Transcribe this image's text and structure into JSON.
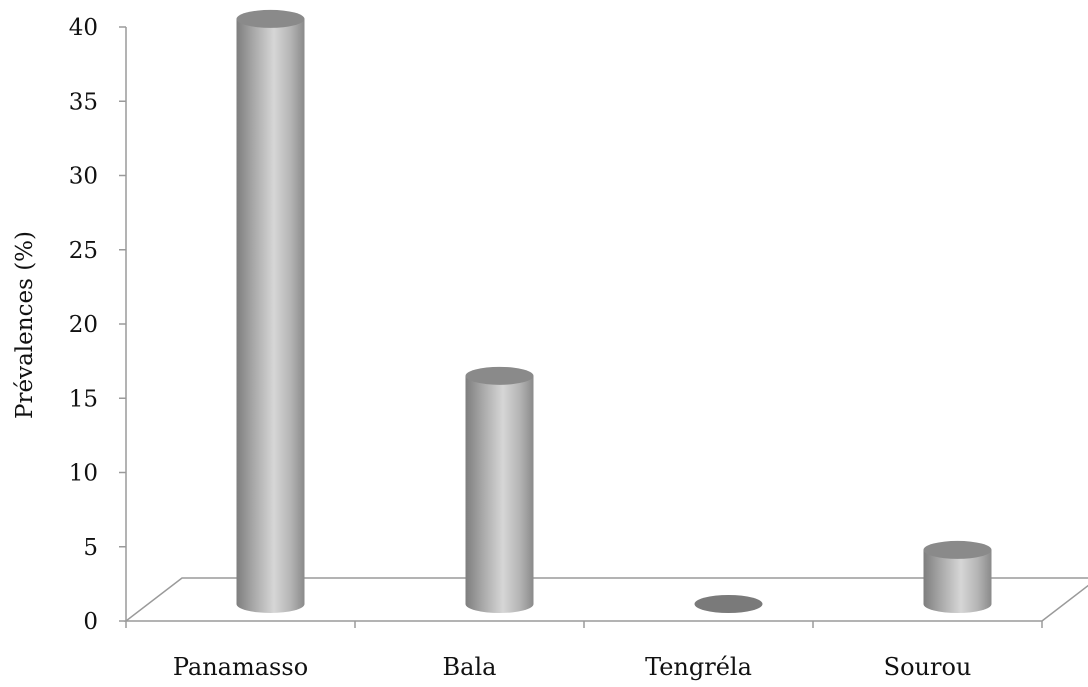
{
  "chart_data": {
    "type": "bar",
    "style": "3d-cylinder",
    "title": "",
    "xlabel": "",
    "ylabel": "Prévalences (%)",
    "categories": [
      "Panamasso",
      "Bala",
      "Tengréla",
      "Sourou"
    ],
    "values": [
      40,
      15.6,
      0,
      3.7
    ],
    "ylim": [
      0,
      40
    ],
    "yticks": [
      0,
      5,
      10,
      15,
      20,
      25,
      30,
      35,
      40
    ],
    "ytick_labels": [
      "0",
      "5",
      "10",
      "15",
      "20",
      "25",
      "30",
      "35",
      "40"
    ],
    "grid": false,
    "legend": "none",
    "colors": {
      "bar_light": "#d4d4d4",
      "bar_mid": "#a9a9a9",
      "bar_dark": "#7a7a7a",
      "bar_top": "#8a8a8a",
      "axis": "#9a9a9a"
    }
  }
}
